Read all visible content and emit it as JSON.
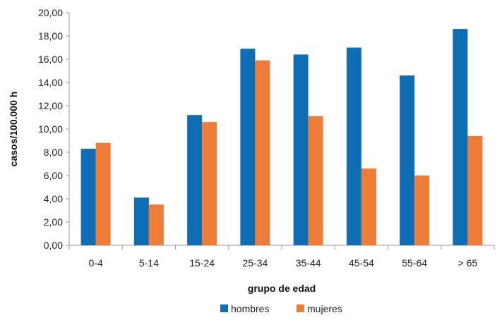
{
  "chart_data": {
    "type": "bar",
    "title": "",
    "xlabel": "grupo de edad",
    "ylabel": "casos/100.000 h",
    "categories": [
      "0-4",
      "5-14",
      "15-24",
      "25-34",
      "35-44",
      "45-54",
      "55-64",
      "> 65"
    ],
    "series": [
      {
        "name": "hombres",
        "color": "#0f6db4",
        "values": [
          8.3,
          4.1,
          11.2,
          16.9,
          16.4,
          17.0,
          14.6,
          18.6
        ]
      },
      {
        "name": "mujeres",
        "color": "#ee7d3a",
        "values": [
          8.8,
          3.5,
          10.6,
          15.9,
          11.1,
          6.6,
          6.0,
          9.4
        ]
      }
    ],
    "ylim": [
      0,
      20
    ],
    "yticks": [
      "0,00",
      "2,00",
      "4,00",
      "6,00",
      "8,00",
      "10,00",
      "12,00",
      "14,00",
      "16,00",
      "18,00",
      "20,00"
    ],
    "grid": false,
    "legend_position": "bottom"
  }
}
